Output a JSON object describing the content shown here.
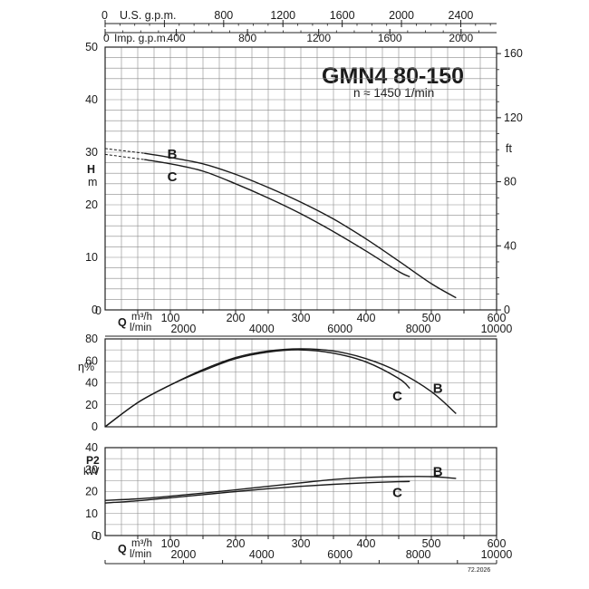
{
  "chart_data": {
    "title": "GMN4 80-150",
    "subtitle": "n ≈ 1450 1/min",
    "footer_code": "72.2026",
    "x_axis": {
      "main": {
        "unit": "m³/h",
        "letter": "Q",
        "ticks": [
          0,
          100,
          200,
          300,
          400,
          500,
          600
        ],
        "range": [
          0,
          600
        ]
      },
      "lpm": {
        "unit": "l/min",
        "ticks": [
          2000,
          4000,
          6000,
          8000,
          10000
        ]
      },
      "us_gpm": {
        "label": "U.S. g.p.m.",
        "zero": "0",
        "ticks": [
          800,
          1200,
          1600,
          2000,
          2400
        ]
      },
      "imp_gpm": {
        "label": "Imp. g.p.m.",
        "zero": "0",
        "ticks": [
          400,
          800,
          1200,
          1600,
          2000
        ]
      }
    },
    "charts": [
      {
        "id": "head",
        "type": "line",
        "ylabel_top": "H",
        "ylabel_bottom": "m",
        "ylim": [
          0,
          50
        ],
        "yticks": [
          0,
          10,
          20,
          30,
          40,
          50
        ],
        "ylabel_right": "ft",
        "yticks_right": [
          0,
          40,
          80,
          120,
          160
        ],
        "grid": true,
        "series": [
          {
            "name": "B",
            "x": [
              60,
              100,
              150,
              200,
              250,
              300,
              350,
              400,
              450,
              500,
              538
            ],
            "y": [
              29.8,
              29,
              27.8,
              25.8,
              23.3,
              20.5,
              17.3,
              13.5,
              9.3,
              5,
              2.3
            ],
            "extrapolated": {
              "x": [
                0,
                60
              ],
              "y": [
                30.7,
                29.8
              ]
            }
          },
          {
            "name": "C",
            "x": [
              60,
              100,
              150,
              200,
              250,
              300,
              350,
              400,
              450,
              467
            ],
            "y": [
              28.6,
              27.8,
              26.4,
              24,
              21.3,
              18.3,
              14.9,
              11.2,
              7.3,
              6.3
            ],
            "extrapolated": {
              "x": [
                0,
                60
              ],
              "y": [
                29.6,
                28.6
              ]
            }
          }
        ]
      },
      {
        "id": "efficiency",
        "type": "line",
        "ylabel": "η%",
        "ylim": [
          0,
          80
        ],
        "yticks": [
          0,
          20,
          40,
          60,
          80
        ],
        "grid": true,
        "series": [
          {
            "name": "B",
            "x": [
              0,
              50,
              100,
              150,
              200,
              250,
              300,
              350,
              400,
              450,
              500,
              538
            ],
            "y": [
              0,
              22,
              38,
              52,
              63,
              69,
              71,
              69,
              62,
              50,
              32,
              12
            ]
          },
          {
            "name": "C",
            "x": [
              0,
              50,
              100,
              150,
              200,
              250,
              300,
              350,
              400,
              450,
              467
            ],
            "y": [
              0,
              22,
              38,
              51,
              62,
              68,
              70,
              67,
              59,
              44,
              35
            ]
          }
        ]
      },
      {
        "id": "power",
        "type": "line",
        "ylabel_top": "P2",
        "ylabel_bottom": "kW",
        "ylim": [
          0,
          40
        ],
        "yticks": [
          0,
          10,
          20,
          30,
          40
        ],
        "grid": true,
        "series": [
          {
            "name": "B",
            "x": [
              0,
              50,
              100,
              150,
              200,
              250,
              300,
              350,
              400,
              450,
              500,
              538
            ],
            "y": [
              16,
              16.7,
              17.9,
              19.3,
              20.8,
              22.4,
              24,
              25.5,
              26.4,
              26.8,
              26.8,
              26
            ]
          },
          {
            "name": "C",
            "x": [
              0,
              50,
              100,
              150,
              200,
              250,
              300,
              350,
              400,
              450,
              467
            ],
            "y": [
              14.8,
              15.8,
              17.2,
              18.6,
              20,
              21.3,
              22.4,
              23.3,
              24,
              24.5,
              24.6
            ]
          }
        ]
      }
    ]
  }
}
